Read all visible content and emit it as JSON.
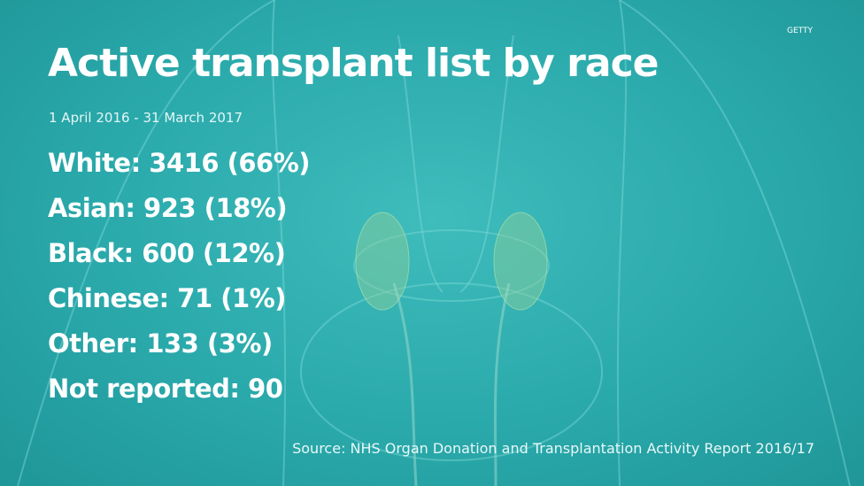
{
  "header": {
    "title": "Active transplant list by race",
    "subtitle": "1 April 2016 - 31 March 2017",
    "credit": "GETTY"
  },
  "items": [
    "White: 3416 (66%)",
    "Asian: 923 (18%)",
    "Black: 600 (12%)",
    "Chinese: 71 (1%)",
    "Other: 133 (3%)",
    "Not reported: 90"
  ],
  "footer": {
    "source": "Source: NHS Organ Donation and Transplantation Activity Report 2016/17"
  }
}
